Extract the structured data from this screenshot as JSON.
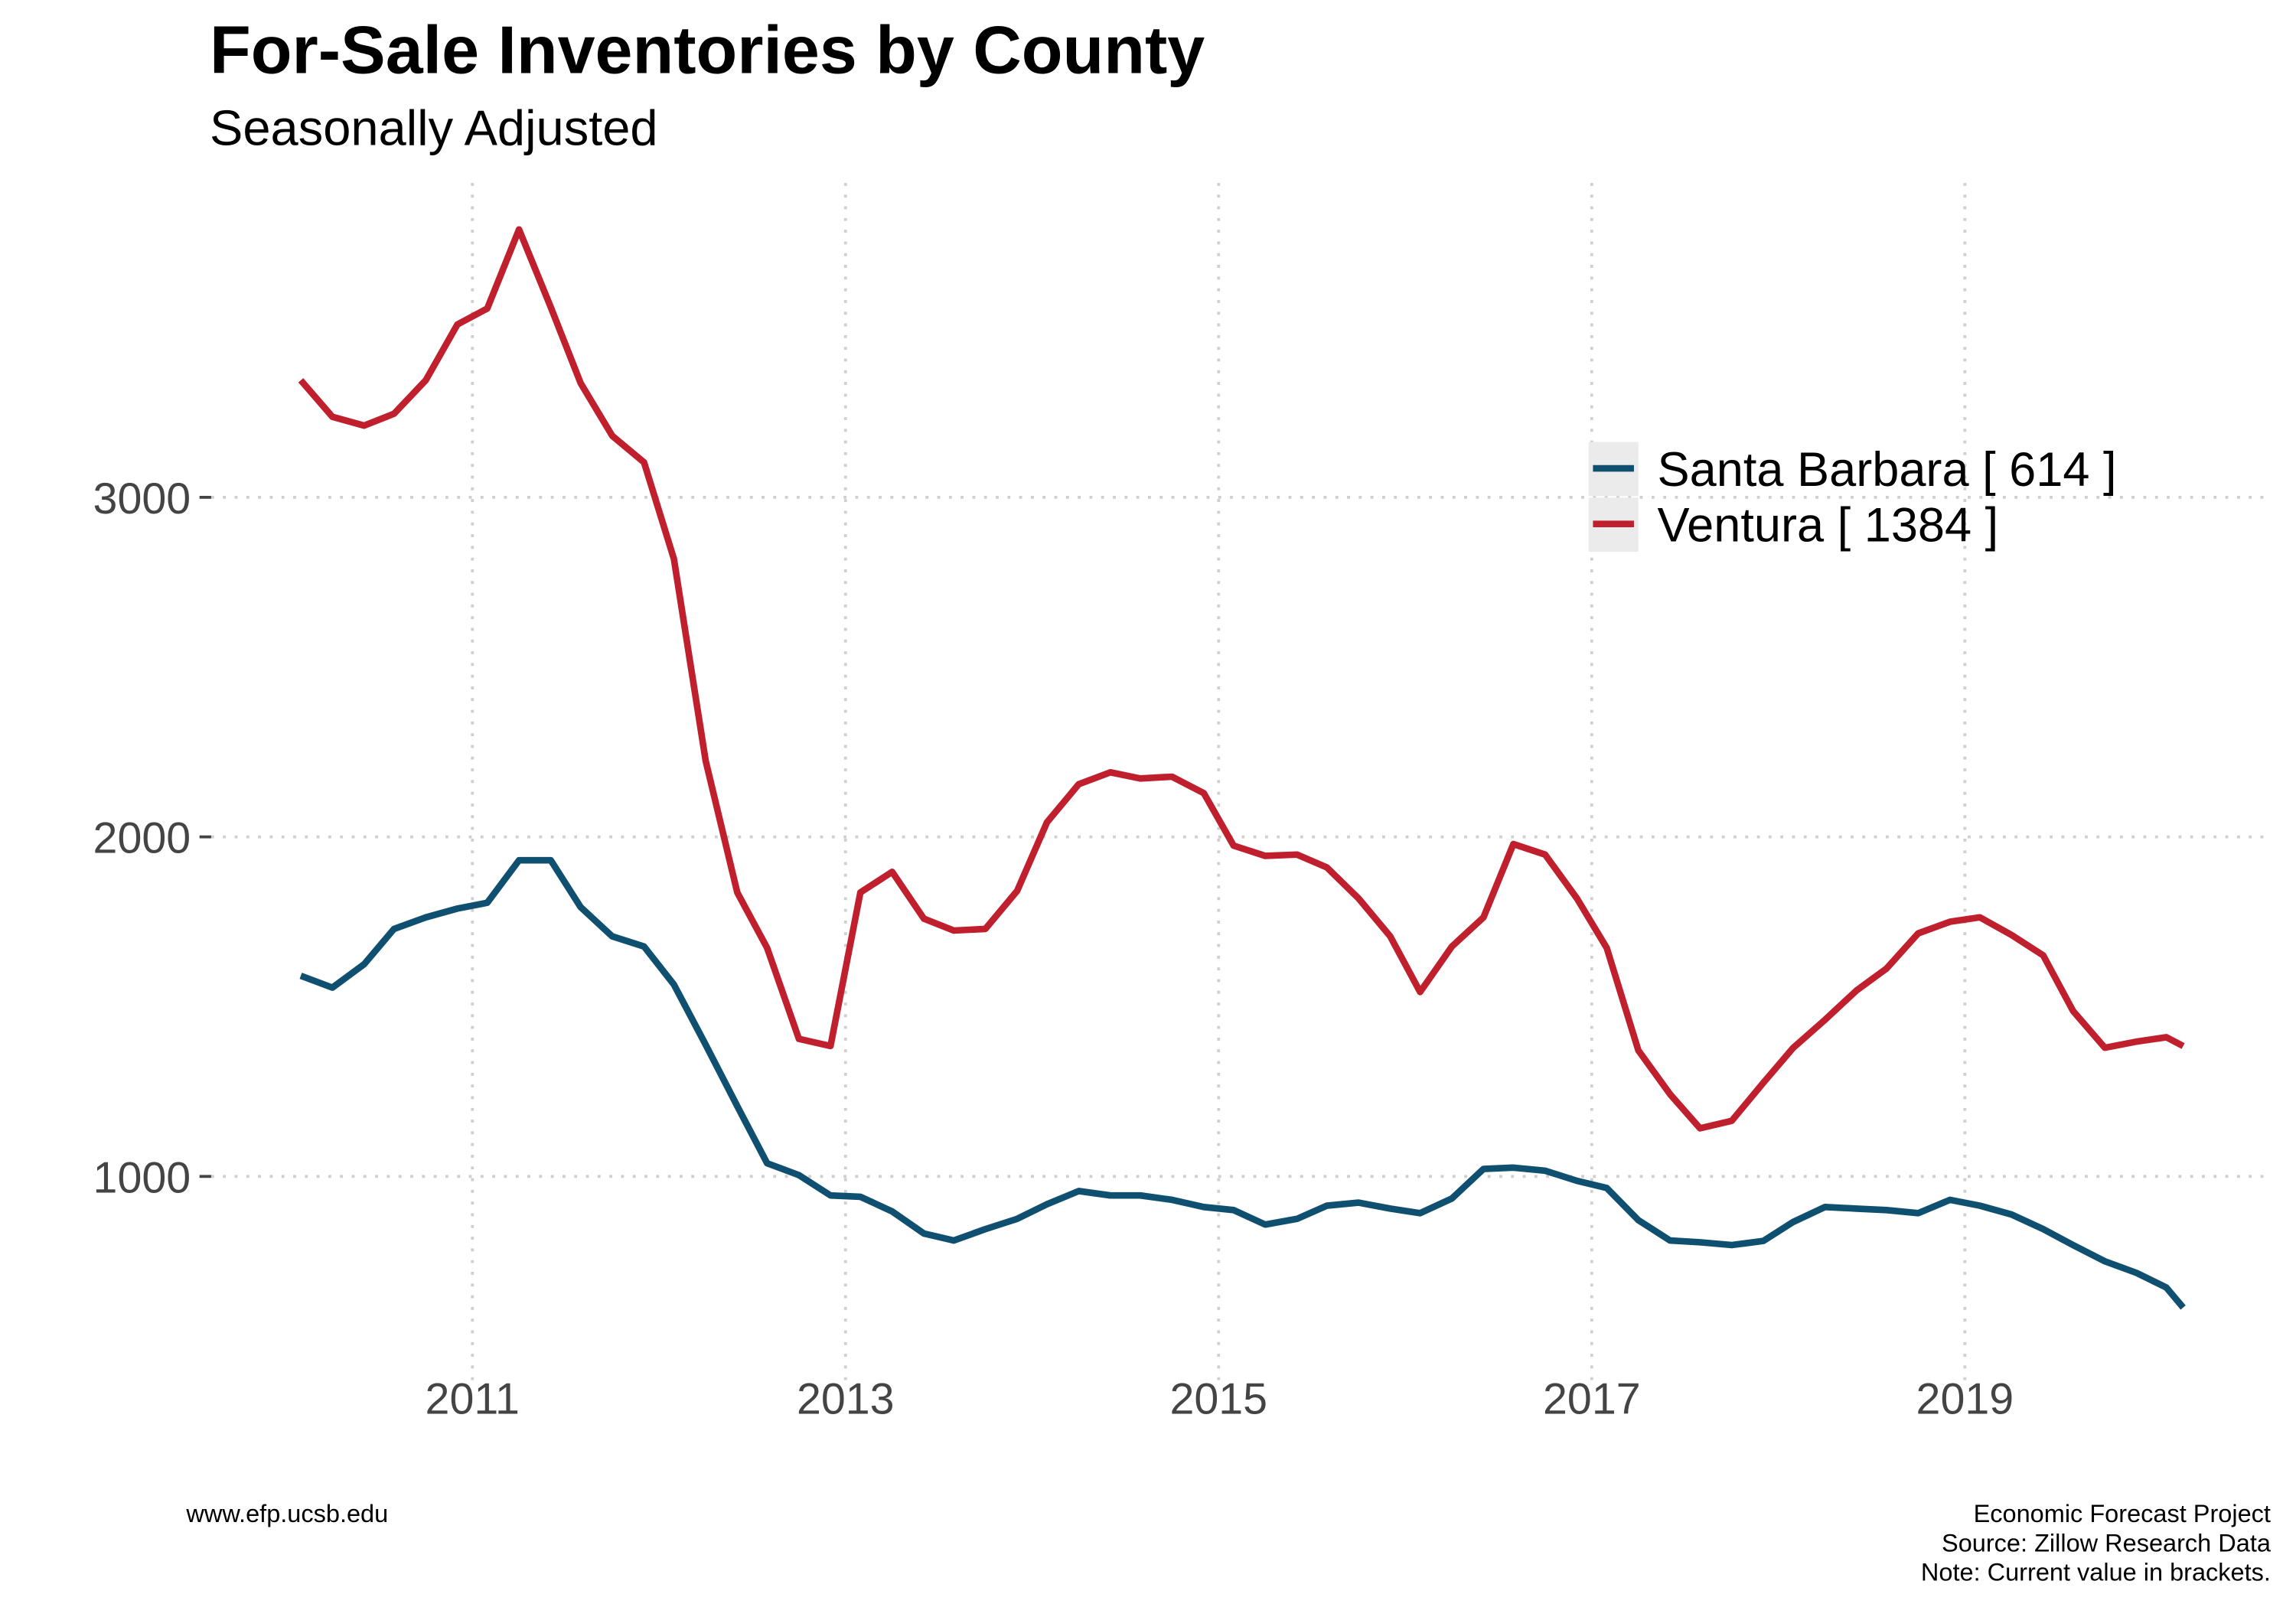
{
  "chart_data": {
    "type": "line",
    "title": "For-Sale Inventories by County",
    "subtitle": "Seasonally Adjusted",
    "source_url": "www.efp.ucsb.edu",
    "caption": [
      "Economic Forecast Project",
      "Source: Zillow Research Data",
      "Note: Current value in brackets."
    ],
    "x": [
      2010.08,
      2010.25,
      2010.42,
      2010.58,
      2010.75,
      2010.92,
      2011.08,
      2011.25,
      2011.42,
      2011.58,
      2011.75,
      2011.92,
      2012.08,
      2012.25,
      2012.42,
      2012.58,
      2012.75,
      2012.92,
      2013.08,
      2013.25,
      2013.42,
      2013.58,
      2013.75,
      2013.92,
      2014.08,
      2014.25,
      2014.42,
      2014.58,
      2014.75,
      2014.92,
      2015.08,
      2015.25,
      2015.42,
      2015.58,
      2015.75,
      2015.92,
      2016.08,
      2016.25,
      2016.42,
      2016.58,
      2016.75,
      2016.92,
      2017.08,
      2017.25,
      2017.42,
      2017.58,
      2017.75,
      2017.92,
      2018.08,
      2018.25,
      2018.42,
      2018.58,
      2018.75,
      2018.92,
      2019.08,
      2019.25,
      2019.42,
      2019.58,
      2019.75,
      2019.92,
      2020.08,
      2020.17
    ],
    "series": [
      {
        "name": "Santa Barbara [ 614 ]",
        "color": "#0f5071",
        "values": [
          1591,
          1556,
          1625,
          1729,
          1763,
          1789,
          1806,
          1931,
          1931,
          1793,
          1707,
          1677,
          1565,
          1388,
          1207,
          1039,
          1004,
          944,
          940,
          897,
          832,
          811,
          845,
          875,
          918,
          957,
          944,
          944,
          931,
          910,
          901,
          858,
          875,
          914,
          923,
          905,
          892,
          935,
          1022,
          1026,
          1017,
          987,
          966,
          871,
          811,
          806,
          798,
          810,
          866,
          910,
          905,
          901,
          892,
          931,
          914,
          888,
          845,
          798,
          750,
          716,
          673,
          614
        ]
      },
      {
        "name": "Ventura [ 1384 ]",
        "color": "#c0202d",
        "values": [
          3345,
          3237,
          3211,
          3246,
          3345,
          3509,
          3556,
          3789,
          3560,
          3336,
          3181,
          3103,
          2819,
          2224,
          1836,
          1673,
          1405,
          1384,
          1836,
          1897,
          1759,
          1724,
          1729,
          1841,
          2043,
          2155,
          2190,
          2172,
          2177,
          2129,
          1974,
          1944,
          1948,
          1910,
          1819,
          1707,
          1543,
          1677,
          1763,
          1979,
          1948,
          1819,
          1673,
          1371,
          1242,
          1142,
          1164,
          1276,
          1379,
          1461,
          1548,
          1612,
          1716,
          1750,
          1763,
          1711,
          1651,
          1487,
          1379,
          1397,
          1410,
          1384
        ]
      }
    ],
    "xlim": [
      2009.6,
      2020.6
    ],
    "xticks": [
      2011,
      2013,
      2015,
      2017,
      2019
    ],
    "ylim": [
      400,
      3900
    ],
    "yticks": [
      1000,
      2000,
      3000
    ],
    "grid": true,
    "legend": "right"
  }
}
